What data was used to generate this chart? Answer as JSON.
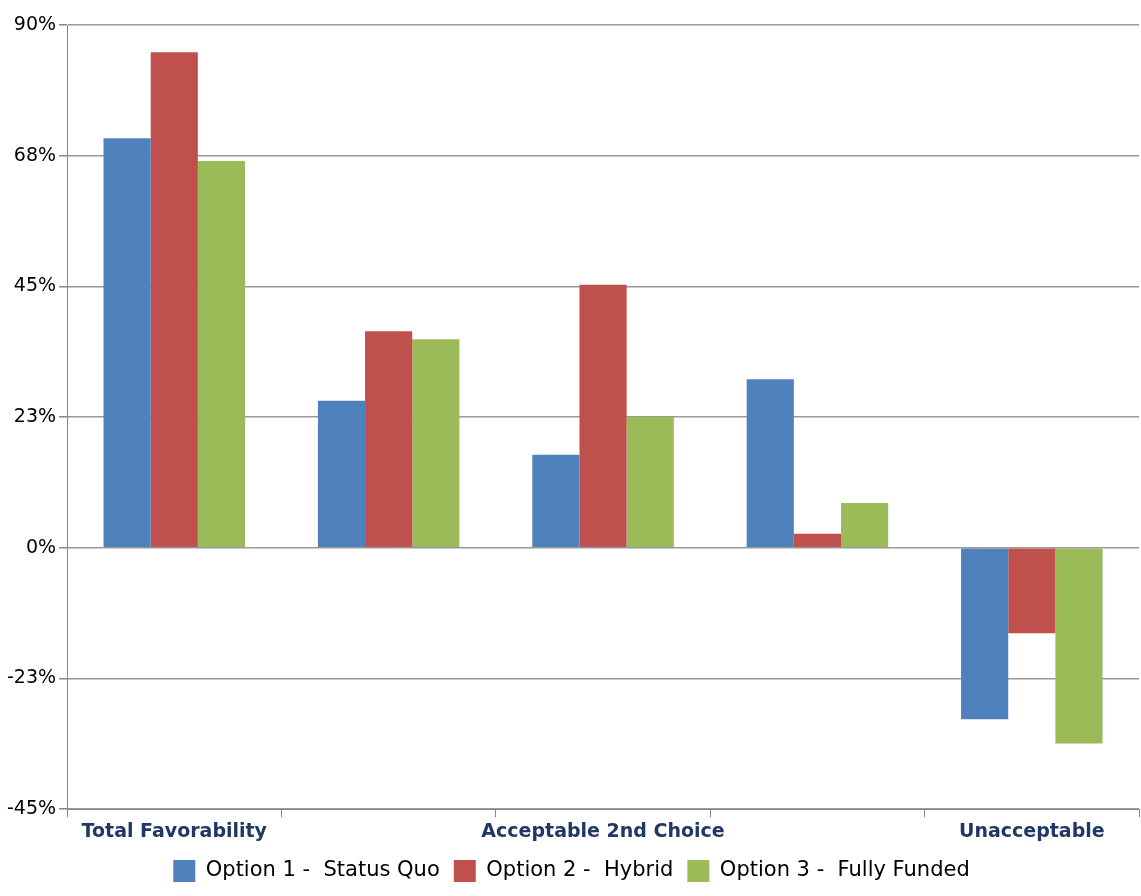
{
  "chart_data": {
    "type": "bar",
    "categories": [
      "Total Favorability",
      null,
      "Acceptable 2nd Choice",
      null,
      "Unacceptable"
    ],
    "series": [
      {
        "name": "Option 1 -  Status Quo",
        "color": "#4f81bd",
        "values": [
          70.5,
          25.3,
          16.0,
          29.0,
          -29.5
        ]
      },
      {
        "name": "Option 2 -  Hybrid",
        "color": "#c0504d",
        "values": [
          85.3,
          37.3,
          45.3,
          2.4,
          -14.7
        ]
      },
      {
        "name": "Option 3 -  Fully Funded",
        "color": "#9bbb59",
        "values": [
          66.6,
          35.9,
          22.5,
          7.7,
          -33.7
        ]
      }
    ],
    "ylim": [
      -45,
      90
    ],
    "yticks": [
      {
        "value": -45,
        "label": "-45%"
      },
      {
        "value": -22.5,
        "label": "-23%"
      },
      {
        "value": 0,
        "label": "0%"
      },
      {
        "value": 22.5,
        "label": "23%"
      },
      {
        "value": 45,
        "label": "45%"
      },
      {
        "value": 67.5,
        "label": "68%"
      },
      {
        "value": 90,
        "label": "90%"
      }
    ],
    "grid": "y",
    "legend": "bottom"
  }
}
